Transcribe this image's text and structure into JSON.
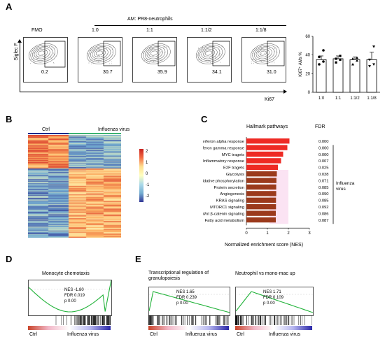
{
  "panels": {
    "a": "A",
    "b": "B",
    "c": "C",
    "d": "D",
    "e": "E"
  },
  "panel_a": {
    "group_title": "AM: PR8-neutrophils",
    "y_axis": "Siglec F",
    "x_axis": "Ki67",
    "plots": [
      {
        "label": "FMO",
        "value": "0.2"
      },
      {
        "label": "1:0",
        "value": "30.7"
      },
      {
        "label": "1:1",
        "value": "35.9"
      },
      {
        "label": "1:1/2",
        "value": "34.1"
      },
      {
        "label": "1:1/8",
        "value": "31.0"
      }
    ]
  },
  "chart_data": [
    {
      "type": "bar",
      "ylabel": "Ki67⁺ AMs %",
      "categories": [
        "1:0",
        "1:1",
        "1:1/2",
        "1:1/8"
      ],
      "values": [
        35,
        36,
        35,
        35
      ],
      "errors": [
        4,
        3,
        3,
        8
      ],
      "points": [
        [
          30,
          33,
          38,
          45
        ],
        [
          32,
          35,
          36,
          39
        ],
        [
          30,
          34,
          36,
          37
        ],
        [
          28,
          30,
          35,
          49
        ]
      ],
      "ylim": [
        0,
        60
      ],
      "yticks": [
        "0",
        "20",
        "40",
        "60"
      ]
    },
    {
      "type": "bar",
      "title": "Hallmark pathways",
      "xlabel": "Normalized enrichment score (NES)",
      "xlim": [
        0,
        3
      ],
      "xticks": [
        "0",
        "1",
        "2",
        "3"
      ],
      "fdr_header": "FDR",
      "group_label": "Influenza virus",
      "categories": [
        "Interferon alpha response",
        "Interferon gamma response",
        "MYC tragets",
        "Inflammatory response",
        "E2F tragets",
        "Glycolysis",
        "Oxidative phosphorylation",
        "Protein secretion",
        "Angiogenesis",
        "KRAS signaling",
        "MTORC1 signaling",
        "Wnt β-catenin signaling",
        "Fatty acid metabolism"
      ],
      "values": [
        2.05,
        1.95,
        1.75,
        1.65,
        1.5,
        1.45,
        1.43,
        1.42,
        1.42,
        1.41,
        1.41,
        1.4,
        1.4
      ],
      "fdr": [
        "0.000",
        "0.000",
        "0.000",
        "0.007",
        "0.025",
        "0.038",
        "0.071",
        "0.085",
        "0.090",
        "0.085",
        "0.092",
        "0.086",
        "0.087"
      ]
    }
  ],
  "panel_b": {
    "groups": [
      "Ctrl",
      "Influenza virus"
    ],
    "colorbar_ticks": [
      "2",
      "1",
      "0",
      "-1",
      "-2"
    ]
  },
  "gsea": [
    {
      "title": "Monocyte chemotaxis",
      "nes": "NES  -1.80",
      "fdr": "FDR    0.019",
      "p": "p       0.00",
      "left": "Ctrl",
      "right": "Influenza virus"
    },
    {
      "title": "Transcriptional regulation of granulopoiesis",
      "nes": "NES  1.65",
      "fdr": "FDR  0.239",
      "p": "p      0.00",
      "left": "Ctrl",
      "right": "Influenza virus"
    },
    {
      "title": "Neutrophil vs mono-mac up",
      "nes": "NES  1.71",
      "fdr": "FDR  0.109",
      "p": "p      0.00",
      "left": "Ctrl",
      "right": "Influenza virus"
    }
  ]
}
